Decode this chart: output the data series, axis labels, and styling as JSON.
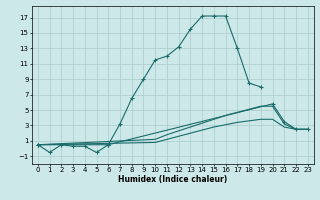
{
  "title": "",
  "xlabel": "Humidex (Indice chaleur)",
  "xlim": [
    -0.5,
    23.5
  ],
  "ylim": [
    -2,
    18.5
  ],
  "yticks": [
    -1,
    1,
    3,
    5,
    7,
    9,
    11,
    13,
    15,
    17
  ],
  "xticks": [
    0,
    1,
    2,
    3,
    4,
    5,
    6,
    7,
    8,
    9,
    10,
    11,
    12,
    13,
    14,
    15,
    16,
    17,
    18,
    19,
    20,
    21,
    22,
    23
  ],
  "background_color": "#cce8e8",
  "grid_color": "#aacccc",
  "line_color": "#1a6b6b",
  "lines": [
    {
      "x": [
        0,
        1,
        2,
        3,
        4,
        5,
        6,
        7,
        8,
        9,
        10,
        11,
        12,
        13,
        14,
        15,
        16,
        17,
        18,
        19
      ],
      "y": [
        0.5,
        -0.5,
        0.5,
        0.3,
        0.3,
        -0.5,
        0.5,
        3.2,
        6.5,
        9.0,
        11.5,
        12.0,
        13.2,
        15.5,
        17.2,
        17.2,
        17.2,
        13.0,
        8.5,
        8.0
      ],
      "has_markers": true
    },
    {
      "x": [
        0,
        6,
        20,
        21,
        22,
        23
      ],
      "y": [
        0.5,
        0.5,
        5.8,
        3.5,
        2.5,
        2.5
      ],
      "has_markers": true
    },
    {
      "x": [
        0,
        10,
        11,
        12,
        13,
        14,
        15,
        16,
        17,
        18,
        19,
        20,
        21,
        22,
        23
      ],
      "y": [
        0.5,
        1.2,
        1.8,
        2.3,
        2.8,
        3.3,
        3.8,
        4.3,
        4.7,
        5.1,
        5.5,
        5.5,
        3.2,
        2.5,
        2.5
      ],
      "has_markers": false
    },
    {
      "x": [
        0,
        10,
        11,
        12,
        13,
        14,
        15,
        16,
        17,
        18,
        19,
        20,
        21,
        22,
        23
      ],
      "y": [
        0.5,
        0.8,
        1.2,
        1.6,
        2.0,
        2.4,
        2.8,
        3.1,
        3.4,
        3.6,
        3.8,
        3.8,
        2.8,
        2.5,
        2.5
      ],
      "has_markers": false
    }
  ]
}
